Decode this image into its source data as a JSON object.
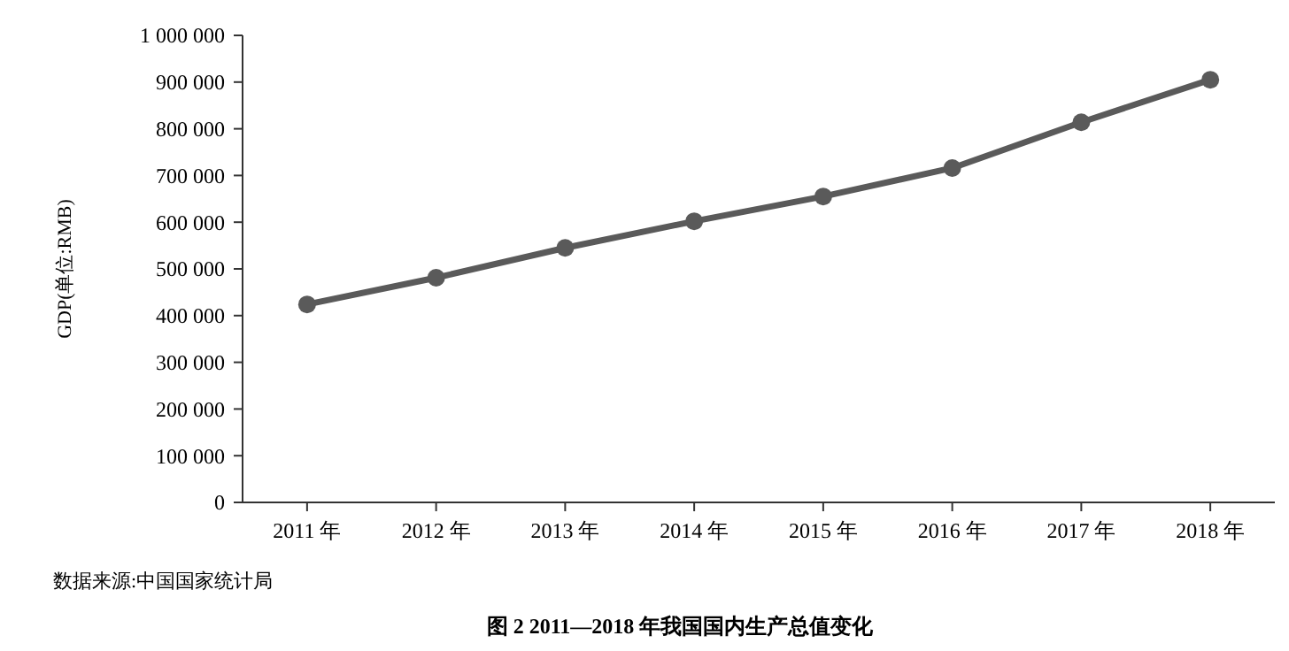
{
  "chart_data": {
    "type": "line",
    "title": "图 2   2011—2018 年我国国内生产总值变化",
    "ylabel": "GDP(单位:RMB)",
    "annotations": [
      "数据来源:中国国家统计局"
    ],
    "categories": [
      "2011 年",
      "2012 年",
      "2013 年",
      "2014 年",
      "2015 年",
      "2016 年",
      "2017 年",
      "2018 年"
    ],
    "series": [
      {
        "color": "#5a5a5a",
        "values": [
          424000,
          481000,
          545000,
          602000,
          655000,
          716000,
          814000,
          905000
        ]
      }
    ],
    "ylim": [
      0,
      1000000
    ],
    "yticks": [
      0,
      {
        "value": 100000,
        "label": "100 000"
      },
      {
        "value": 200000,
        "label": "200 000"
      },
      {
        "value": 300000,
        "label": "300 000"
      },
      {
        "value": 400000,
        "label": "400 000"
      },
      {
        "value": 500000,
        "label": "500 000"
      },
      {
        "value": 600000,
        "label": "600 000"
      },
      {
        "value": 700000,
        "label": "700 000"
      },
      {
        "value": 800000,
        "label": "800 000"
      },
      {
        "value": 900000,
        "label": "900 000"
      },
      {
        "value": 1000000,
        "label": "1 000 000"
      }
    ],
    "marker": "circle",
    "line_style": "solid"
  }
}
